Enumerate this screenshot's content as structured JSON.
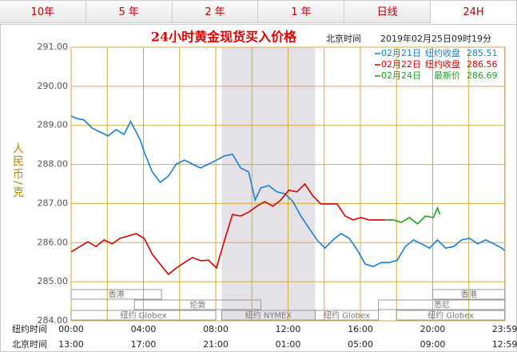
{
  "tabs": [
    "10年",
    "5 年",
    "2 年",
    "1 年",
    "日线",
    "24H"
  ],
  "active_tab": 5,
  "chart_data": {
    "type": "line",
    "title": "24小时黄金现货买入价格",
    "time_zone_label": "北京时间",
    "timestamp": "2019年02月25日09时19分",
    "y_label": "人民币/克",
    "x_row_labels": [
      "纽约时间",
      "北京时间"
    ],
    "xlim": [
      0,
      24
    ],
    "ylim": [
      284,
      291
    ],
    "xticks": [
      {
        "value": 0,
        "label": "00:00"
      },
      {
        "value": 4,
        "label": "04:00"
      },
      {
        "value": 8,
        "label": "08:00"
      },
      {
        "value": 12,
        "label": "12:00"
      },
      {
        "value": 16,
        "label": "16:00"
      },
      {
        "value": 20,
        "label": "20:00"
      },
      {
        "value": 23.98,
        "label": "23:59"
      }
    ],
    "xticks_beijing": [
      "13:00",
      "17:00",
      "21:00",
      "01:00",
      "05:00",
      "09:00",
      "12:59"
    ],
    "x_minor_ticks": [
      2,
      6,
      10,
      14,
      18,
      22
    ],
    "yticks": [
      {
        "value": 284,
        "label": "284.00"
      },
      {
        "value": 285,
        "label": "285.00"
      },
      {
        "value": 286,
        "label": "286.00"
      },
      {
        "value": 287,
        "label": "287.00"
      },
      {
        "value": 288,
        "label": "288.00"
      },
      {
        "value": 289,
        "label": "289.00"
      },
      {
        "value": 290,
        "label": "290.00"
      },
      {
        "value": 291,
        "label": "291.00"
      }
    ],
    "grid": true,
    "sessions": [
      [
        {
          "name": "香港",
          "start": 0,
          "end": 5
        },
        {
          "name": "香港",
          "start": 20,
          "end": 24
        }
      ],
      [
        {
          "name": "伦敦",
          "start": 3.5,
          "end": 10.5
        },
        {
          "name": "悉尼",
          "start": 17,
          "end": 24
        }
      ],
      [
        {
          "name": "纽约 Globex",
          "start": 0,
          "end": 8
        },
        {
          "name": "纽约 NYMEX",
          "start": 8.33,
          "end": 13.5,
          "shaded": true
        },
        {
          "name": "纽约 Globex",
          "start": 13.5,
          "end": 17
        },
        {
          "name": "纽约 Globex",
          "start": 18,
          "end": 24
        }
      ]
    ],
    "series": [
      {
        "name": "02月21日",
        "label": "纽约收盘",
        "last": 285.51,
        "color": "#1a7fd4",
        "x": [
          0,
          0.27,
          0.71,
          1.16,
          1.6,
          2.04,
          2.49,
          2.93,
          3.29,
          3.6,
          3.82,
          4.04,
          4.49,
          4.93,
          5.38,
          5.82,
          6.27,
          6.71,
          7.16,
          7.6,
          8.04,
          8.49,
          8.93,
          9.38,
          9.82,
          10.18,
          10.49,
          10.93,
          11.38,
          11.82,
          12.27,
          12.71,
          13.16,
          13.6,
          14.04,
          14.49,
          14.93,
          15.38,
          15.82,
          16.27,
          16.71,
          17.16,
          17.6,
          18.04,
          18.49,
          18.93,
          19.38,
          19.82,
          20.27,
          20.71,
          21.16,
          21.6,
          22.04,
          22.49,
          22.93,
          23.38,
          23.82,
          23.98
        ],
        "values": [
          289.24,
          289.18,
          289.14,
          288.93,
          288.83,
          288.73,
          288.89,
          288.77,
          289.1,
          288.83,
          288.63,
          288.32,
          287.81,
          287.54,
          287.7,
          288.01,
          288.11,
          288.01,
          287.91,
          288.01,
          288.11,
          288.22,
          288.26,
          287.91,
          287.81,
          287.09,
          287.4,
          287.46,
          287.3,
          287.25,
          287.05,
          286.68,
          286.37,
          286.07,
          285.86,
          286.07,
          286.23,
          286.11,
          285.82,
          285.45,
          285.39,
          285.49,
          285.49,
          285.55,
          285.9,
          286.07,
          285.97,
          285.86,
          286.07,
          285.86,
          285.9,
          286.07,
          286.11,
          285.97,
          286.07,
          285.97,
          285.86,
          285.8
        ]
      },
      {
        "name": "02月22日",
        "label": "纽约收盘",
        "last": 286.56,
        "color": "#d40000",
        "x": [
          0,
          0.49,
          0.93,
          1.38,
          1.82,
          2.27,
          2.71,
          3.16,
          3.6,
          4.04,
          4.49,
          4.93,
          5.38,
          5.82,
          6.27,
          6.71,
          7.16,
          7.6,
          8.04,
          8.49,
          8.93,
          9.38,
          9.82,
          10.27,
          10.71,
          11.16,
          11.6,
          12.04,
          12.49,
          12.93,
          13.38,
          13.82,
          14.27,
          14.71,
          15.16,
          15.6,
          16.04,
          16.49,
          16.93,
          17.38
        ],
        "values": [
          285.76,
          285.9,
          286.02,
          285.9,
          286.07,
          285.97,
          286.11,
          286.17,
          286.23,
          286.11,
          285.7,
          285.45,
          285.19,
          285.35,
          285.49,
          285.62,
          285.54,
          285.55,
          285.35,
          286.07,
          286.72,
          286.68,
          286.78,
          286.93,
          287.05,
          286.93,
          287.09,
          287.34,
          287.3,
          287.5,
          287.19,
          286.99,
          286.99,
          286.99,
          286.68,
          286.58,
          286.64,
          286.58,
          286.58,
          286.58
        ]
      },
      {
        "name": "02月24日",
        "label": "最新价",
        "last": 286.69,
        "color": "#1ca01c",
        "x": [
          17.38,
          17.82,
          18.27,
          18.71,
          19.16,
          19.6,
          20.04,
          20.27,
          20.4
        ],
        "values": [
          286.58,
          286.58,
          286.52,
          286.64,
          286.48,
          286.68,
          286.64,
          286.89,
          286.72
        ]
      }
    ]
  }
}
